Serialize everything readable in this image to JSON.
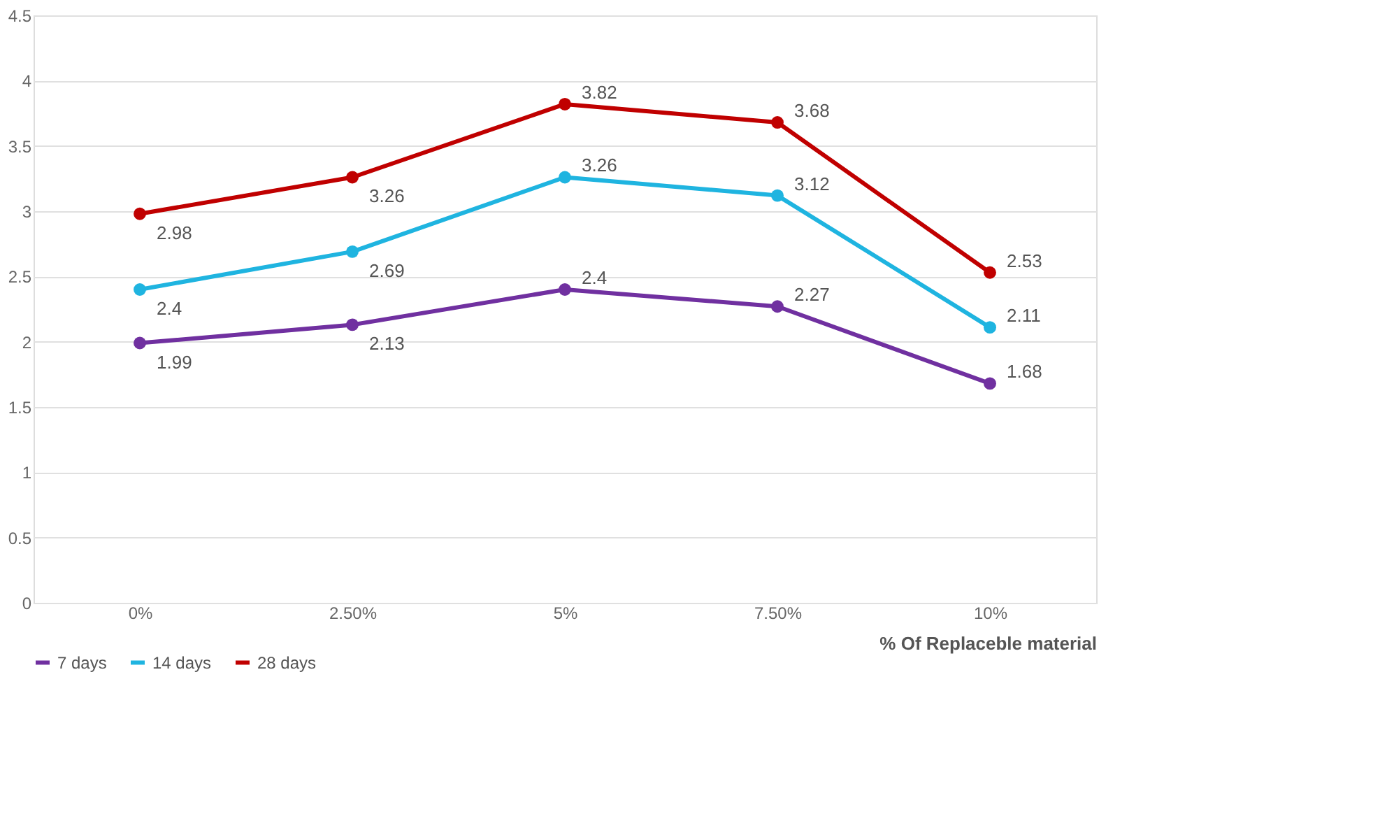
{
  "chart_data": {
    "type": "line",
    "xlabel": "% Of Replaceble  material",
    "categories": [
      "0%",
      "2.50%",
      "5%",
      "7.50%",
      "10%"
    ],
    "series": [
      {
        "name": "7 days",
        "color": "#7030a0",
        "values": [
          1.99,
          2.13,
          2.4,
          2.27,
          1.68
        ]
      },
      {
        "name": "14 days",
        "color": "#1fb4e0",
        "values": [
          2.4,
          2.69,
          3.26,
          3.12,
          2.11
        ]
      },
      {
        "name": "28 days",
        "color": "#c00000",
        "values": [
          2.98,
          3.26,
          3.82,
          3.68,
          2.53
        ]
      }
    ],
    "ylim": [
      0,
      4.5
    ],
    "yticks": [
      0,
      0.5,
      1,
      1.5,
      2,
      2.5,
      3,
      3.5,
      4,
      4.5
    ],
    "grid": "y",
    "legend": "bottom",
    "marker": "circle",
    "line_style": "solid",
    "data_labels": true
  }
}
